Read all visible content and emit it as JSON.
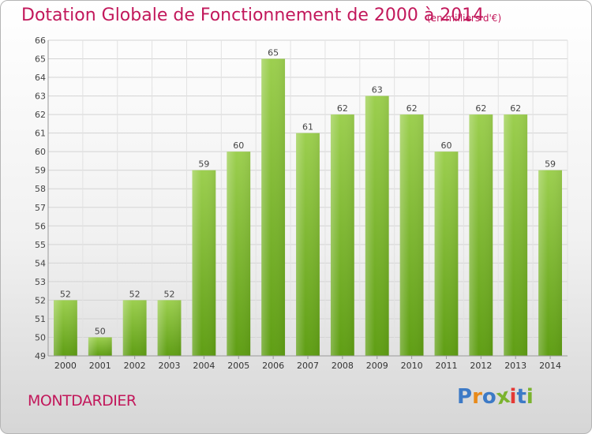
{
  "title": "Dotation Globale de Fonctionnement de 2000 à 2014",
  "subtitle": "(en milliers d'€)",
  "city": "MONTDARDIER",
  "logo": {
    "letters": [
      "P",
      "r",
      "o",
      "x",
      "i",
      "t",
      "i"
    ],
    "colors": [
      "#3d7ac6",
      "#e88a1a",
      "#3d7ac6",
      "#7bb32e",
      "#e53935",
      "#3d7ac6",
      "#7bb32e"
    ]
  },
  "colors": {
    "accent": "#c2185b",
    "bar_top": "#9ccf4f",
    "bar_bottom": "#5f9e14",
    "grid": "#d4d4d4"
  },
  "chart_data": {
    "type": "bar",
    "title": "Dotation Globale de Fonctionnement de 2000 à 2014",
    "xlabel": "",
    "ylabel": "",
    "ylim": [
      49,
      66
    ],
    "yticks": [
      49,
      50,
      51,
      52,
      53,
      54,
      55,
      56,
      57,
      58,
      59,
      60,
      61,
      62,
      63,
      64,
      65,
      66
    ],
    "categories": [
      "2000",
      "2001",
      "2002",
      "2003",
      "2004",
      "2005",
      "2006",
      "2007",
      "2008",
      "2009",
      "2010",
      "2011",
      "2012",
      "2013",
      "2014"
    ],
    "values": [
      52,
      50,
      52,
      52,
      59,
      60,
      65,
      61,
      62,
      63,
      62,
      60,
      62,
      62,
      59
    ],
    "data_labels": [
      "52",
      "50",
      "52",
      "52",
      "59",
      "60",
      "65",
      "61",
      "62",
      "63",
      "62",
      "60",
      "62",
      "62",
      "59"
    ],
    "grid": true
  }
}
